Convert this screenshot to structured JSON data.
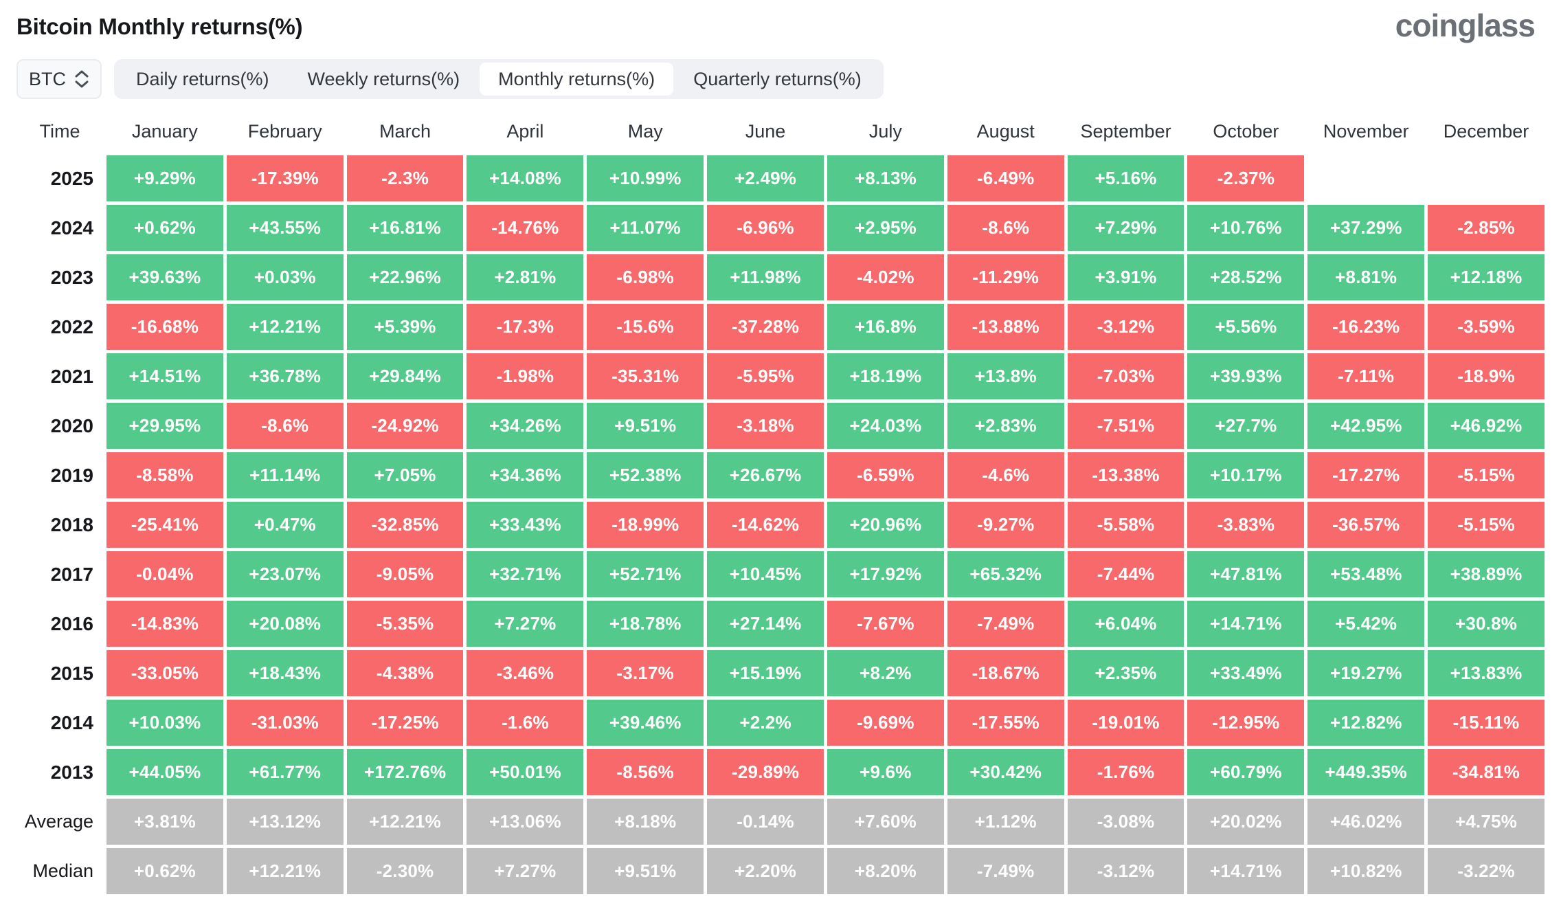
{
  "header": {
    "title": "Bitcoin Monthly returns(%)",
    "logo_text": "coinglass"
  },
  "controls": {
    "symbol_select": {
      "value": "BTC",
      "icon": "updown-chevron-icon"
    },
    "tabs": [
      {
        "label": "Daily returns(%)",
        "active": false
      },
      {
        "label": "Weekly returns(%)",
        "active": false
      },
      {
        "label": "Monthly returns(%)",
        "active": true
      },
      {
        "label": "Quarterly returns(%)",
        "active": false
      }
    ]
  },
  "chart_data": {
    "type": "heatmap",
    "title": "Bitcoin Monthly returns(%)",
    "row_header": "Time",
    "columns": [
      "January",
      "February",
      "March",
      "April",
      "May",
      "June",
      "July",
      "August",
      "September",
      "October",
      "November",
      "December"
    ],
    "rows": [
      {
        "label": "2025",
        "type": "year",
        "values": [
          "+9.29%",
          "-17.39%",
          "-2.3%",
          "+14.08%",
          "+10.99%",
          "+2.49%",
          "+8.13%",
          "-6.49%",
          "+5.16%",
          "-2.37%",
          "",
          ""
        ]
      },
      {
        "label": "2024",
        "type": "year",
        "values": [
          "+0.62%",
          "+43.55%",
          "+16.81%",
          "-14.76%",
          "+11.07%",
          "-6.96%",
          "+2.95%",
          "-8.6%",
          "+7.29%",
          "+10.76%",
          "+37.29%",
          "-2.85%"
        ]
      },
      {
        "label": "2023",
        "type": "year",
        "values": [
          "+39.63%",
          "+0.03%",
          "+22.96%",
          "+2.81%",
          "-6.98%",
          "+11.98%",
          "-4.02%",
          "-11.29%",
          "+3.91%",
          "+28.52%",
          "+8.81%",
          "+12.18%"
        ]
      },
      {
        "label": "2022",
        "type": "year",
        "values": [
          "-16.68%",
          "+12.21%",
          "+5.39%",
          "-17.3%",
          "-15.6%",
          "-37.28%",
          "+16.8%",
          "-13.88%",
          "-3.12%",
          "+5.56%",
          "-16.23%",
          "-3.59%"
        ]
      },
      {
        "label": "2021",
        "type": "year",
        "values": [
          "+14.51%",
          "+36.78%",
          "+29.84%",
          "-1.98%",
          "-35.31%",
          "-5.95%",
          "+18.19%",
          "+13.8%",
          "-7.03%",
          "+39.93%",
          "-7.11%",
          "-18.9%"
        ]
      },
      {
        "label": "2020",
        "type": "year",
        "values": [
          "+29.95%",
          "-8.6%",
          "-24.92%",
          "+34.26%",
          "+9.51%",
          "-3.18%",
          "+24.03%",
          "+2.83%",
          "-7.51%",
          "+27.7%",
          "+42.95%",
          "+46.92%"
        ]
      },
      {
        "label": "2019",
        "type": "year",
        "values": [
          "-8.58%",
          "+11.14%",
          "+7.05%",
          "+34.36%",
          "+52.38%",
          "+26.67%",
          "-6.59%",
          "-4.6%",
          "-13.38%",
          "+10.17%",
          "-17.27%",
          "-5.15%"
        ]
      },
      {
        "label": "2018",
        "type": "year",
        "values": [
          "-25.41%",
          "+0.47%",
          "-32.85%",
          "+33.43%",
          "-18.99%",
          "-14.62%",
          "+20.96%",
          "-9.27%",
          "-5.58%",
          "-3.83%",
          "-36.57%",
          "-5.15%"
        ]
      },
      {
        "label": "2017",
        "type": "year",
        "values": [
          "-0.04%",
          "+23.07%",
          "-9.05%",
          "+32.71%",
          "+52.71%",
          "+10.45%",
          "+17.92%",
          "+65.32%",
          "-7.44%",
          "+47.81%",
          "+53.48%",
          "+38.89%"
        ]
      },
      {
        "label": "2016",
        "type": "year",
        "values": [
          "-14.83%",
          "+20.08%",
          "-5.35%",
          "+7.27%",
          "+18.78%",
          "+27.14%",
          "-7.67%",
          "-7.49%",
          "+6.04%",
          "+14.71%",
          "+5.42%",
          "+30.8%"
        ]
      },
      {
        "label": "2015",
        "type": "year",
        "values": [
          "-33.05%",
          "+18.43%",
          "-4.38%",
          "-3.46%",
          "-3.17%",
          "+15.19%",
          "+8.2%",
          "-18.67%",
          "+2.35%",
          "+33.49%",
          "+19.27%",
          "+13.83%"
        ]
      },
      {
        "label": "2014",
        "type": "year",
        "values": [
          "+10.03%",
          "-31.03%",
          "-17.25%",
          "-1.6%",
          "+39.46%",
          "+2.2%",
          "-9.69%",
          "-17.55%",
          "-19.01%",
          "-12.95%",
          "+12.82%",
          "-15.11%"
        ]
      },
      {
        "label": "2013",
        "type": "year",
        "values": [
          "+44.05%",
          "+61.77%",
          "+172.76%",
          "+50.01%",
          "-8.56%",
          "-29.89%",
          "+9.6%",
          "+30.42%",
          "-1.76%",
          "+60.79%",
          "+449.35%",
          "-34.81%"
        ]
      },
      {
        "label": "Average",
        "type": "summary",
        "values": [
          "+3.81%",
          "+13.12%",
          "+12.21%",
          "+13.06%",
          "+8.18%",
          "-0.14%",
          "+7.60%",
          "+1.12%",
          "-3.08%",
          "+20.02%",
          "+46.02%",
          "+4.75%"
        ]
      },
      {
        "label": "Median",
        "type": "summary",
        "values": [
          "+0.62%",
          "+12.21%",
          "-2.30%",
          "+7.27%",
          "+9.51%",
          "+2.20%",
          "+8.20%",
          "-7.49%",
          "-3.12%",
          "+14.71%",
          "+10.82%",
          "-3.22%"
        ]
      }
    ],
    "legend": {
      "positive_color": "#53CA8C",
      "negative_color": "#F7696A",
      "summary_color": "#BFBFBF"
    }
  }
}
